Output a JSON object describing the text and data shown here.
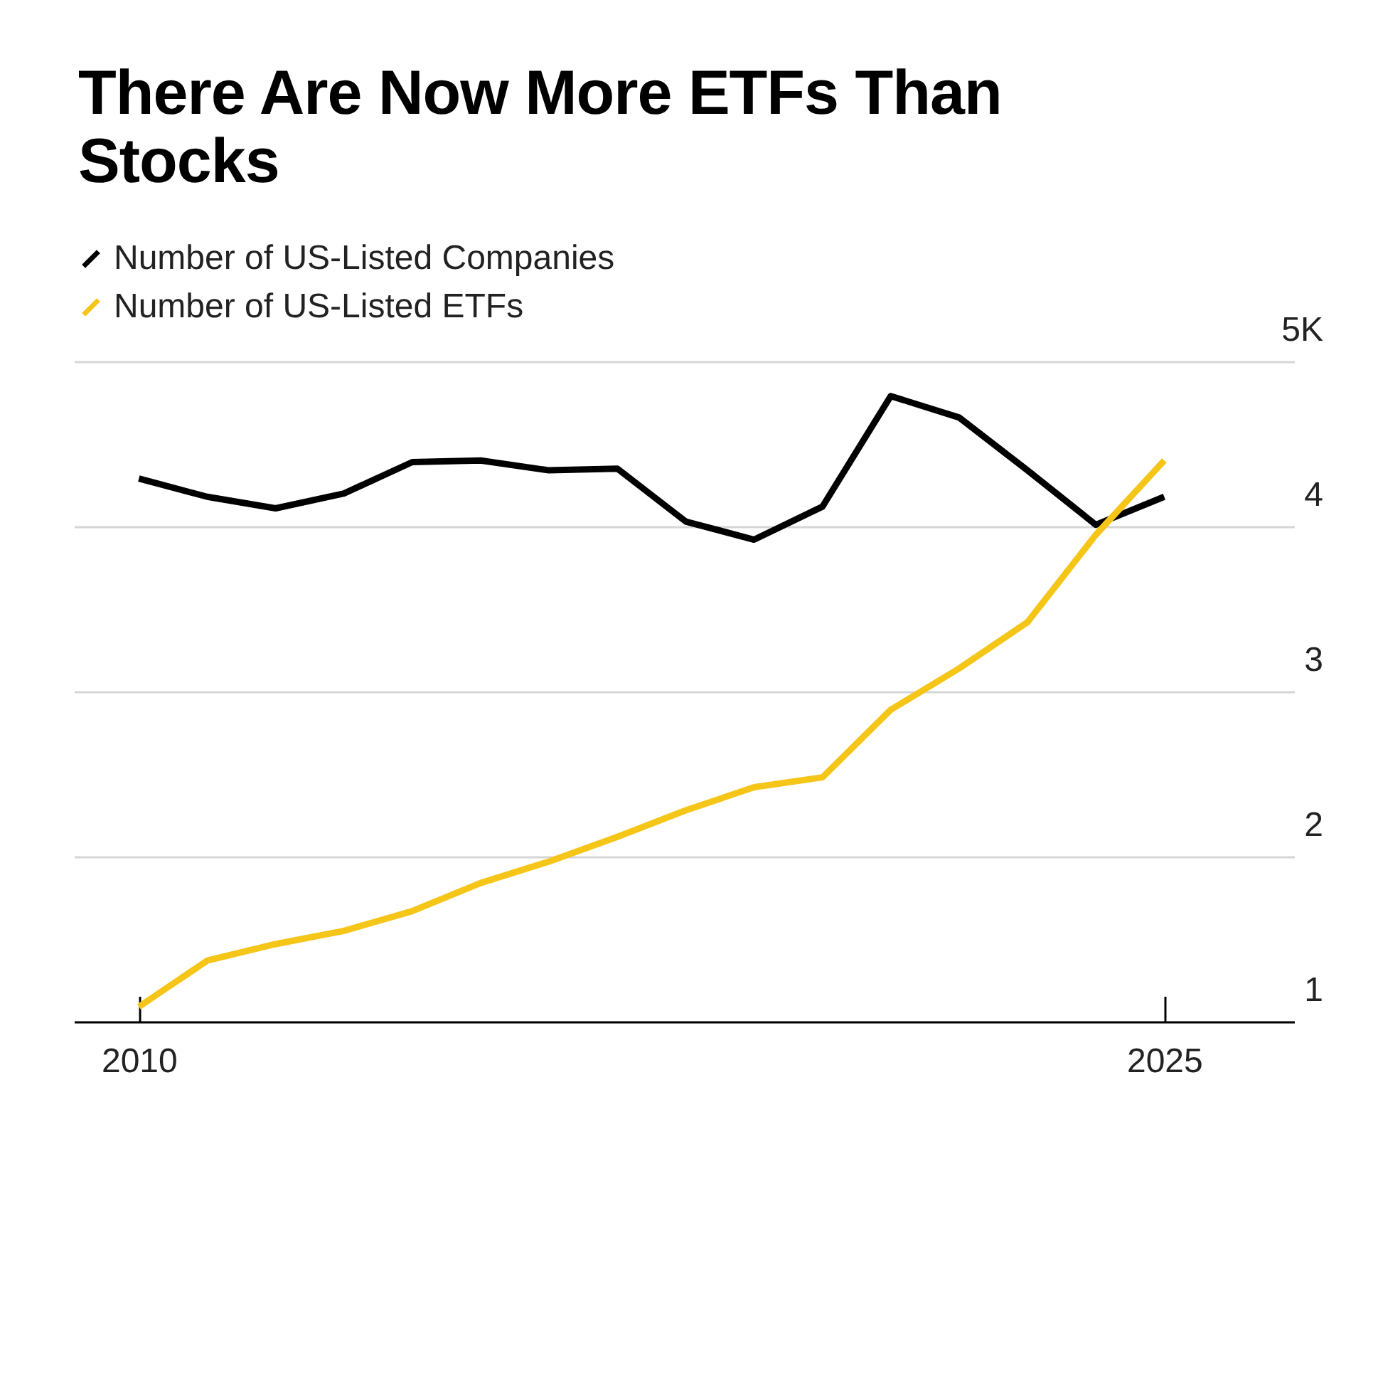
{
  "chart_data": {
    "type": "line",
    "title": "There Are Now More ETFs Than Stocks",
    "x": [
      2010,
      2011,
      2012,
      2013,
      2014,
      2015,
      2016,
      2017,
      2018,
      2019,
      2020,
      2021,
      2022,
      2023,
      2024,
      2025
    ],
    "series": [
      {
        "name": "Number of US-Listed Companies",
        "color": "#000000",
        "values": [
          4.29,
          4.18,
          4.11,
          4.2,
          4.39,
          4.4,
          4.34,
          4.35,
          4.03,
          3.92,
          4.12,
          4.79,
          4.66,
          4.34,
          4.01,
          4.18
        ]
      },
      {
        "name": "Number of US-Listed ETFs",
        "color": "#f5c518",
        "values": [
          1.09,
          1.37,
          1.47,
          1.55,
          1.67,
          1.84,
          1.97,
          2.12,
          2.28,
          2.42,
          2.48,
          2.89,
          3.14,
          3.42,
          3.95,
          4.4
        ]
      }
    ],
    "xlim": [
      2009.05,
      2026.9
    ],
    "xticks": [
      2010,
      2025
    ],
    "ylim": [
      1,
      5
    ],
    "yticks": [
      1,
      2,
      3,
      4,
      {
        "value": 5,
        "label": "5K"
      }
    ],
    "grid": "y",
    "legend": "top left",
    "line_style": "solid",
    "marker": "none"
  }
}
